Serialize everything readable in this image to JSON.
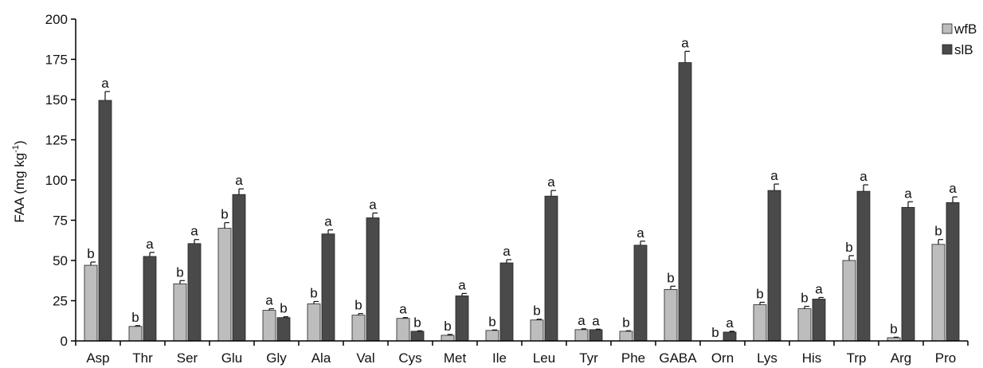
{
  "chart_data": {
    "type": "bar",
    "ylabel_main": "FAA (mg kg",
    "ylabel_sup": "-1",
    "ylabel_close": ")",
    "ylim": [
      0,
      200
    ],
    "yticks": [
      "0",
      "25",
      "50",
      "75",
      "100",
      "125",
      "150",
      "175",
      "200"
    ],
    "legend_position": "top-right",
    "categories": [
      "Asp",
      "Thr",
      "Ser",
      "Glu",
      "Gly",
      "Ala",
      "Val",
      "Cys",
      "Met",
      "Ile",
      "Leu",
      "Tyr",
      "Phe",
      "GABA",
      "Orn",
      "Lys",
      "His",
      "Trp",
      "Arg",
      "Pro"
    ],
    "series": [
      {
        "name": "wfB",
        "color": "#bdbdbd",
        "values": [
          47,
          9,
          35.5,
          70,
          19,
          23,
          16,
          14,
          3.5,
          6.5,
          13,
          7,
          6,
          32,
          0,
          22.5,
          20,
          50,
          2,
          60
        ],
        "errors": [
          2,
          0.5,
          2,
          3.5,
          1,
          1.5,
          1,
          0.5,
          0.5,
          0.3,
          0.5,
          0.5,
          0.3,
          2,
          0,
          1.5,
          1.5,
          3,
          0.3,
          3
        ],
        "labels": [
          "b",
          "b",
          "b",
          "b",
          "a",
          "b",
          "b",
          "a",
          "b",
          "b",
          "b",
          "a",
          "b",
          "b",
          "b",
          "b",
          "b",
          "b",
          "b",
          "b"
        ]
      },
      {
        "name": "slB",
        "color": "#4a4a4a",
        "values": [
          149.5,
          52.5,
          60.5,
          91,
          14.5,
          66.5,
          76.5,
          6,
          28,
          48.5,
          90,
          7,
          59.5,
          173,
          5.5,
          93.5,
          26,
          93,
          83,
          86
        ],
        "errors": [
          5.5,
          2.5,
          2.5,
          3.5,
          0.5,
          2.5,
          3,
          0.3,
          1.5,
          2,
          3.5,
          0.3,
          2.5,
          7,
          0.5,
          4,
          1,
          4,
          3.5,
          3.5
        ],
        "labels": [
          "a",
          "a",
          "a",
          "a",
          "b",
          "a",
          "a",
          "b",
          "a",
          "a",
          "a",
          "a",
          "a",
          "a",
          "a",
          "a",
          "a",
          "a",
          "a",
          "a"
        ]
      }
    ]
  }
}
